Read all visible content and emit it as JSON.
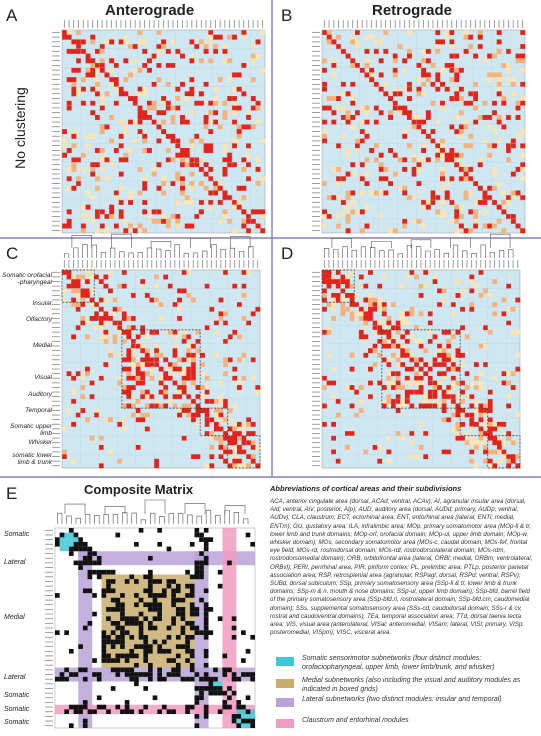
{
  "panels": [
    {
      "letter": "A",
      "title": "Anterograde"
    },
    {
      "letter": "B",
      "title": "Retrograde"
    },
    {
      "letter": "C"
    },
    {
      "letter": "D"
    },
    {
      "letter": "E",
      "title": "Composite Matrix"
    }
  ],
  "side_label": "No clustering",
  "group_labels": [
    "Somatic orofacial -pharyngeal",
    "Insular",
    "Olfactory",
    "Medial",
    "Visual",
    "Auditory",
    "Temporal",
    "Somatic upper limb",
    "Whisker",
    "somatic lower limb & trunk"
  ],
  "composite_labels": [
    "Somatic",
    "Lateral",
    "Medial",
    "Lateral",
    "Somatic",
    "Somatic",
    "Somatic"
  ],
  "abbreviations": {
    "heading": "Abbreviations of cortical areas and their subdivisions",
    "text": "ACA, anterior cingulate area (dorsal, ACAd; ventral, ACAv); AI, agranular insular area (dorsal, AId; ventral, AIv; posterior, AIp); AUD, auditory area (dorsal, AUDd; primary, AUDp; ventral, AUDv); CLA, claustrum; ECT, ectorhinal area; ENT, entorhinal area (lateral, ENTl; medial, ENTm); GU, gustatory area; ILA, infralimbic area; MOp, primary somatomotor area (MOp-ll & tr, lower limb and trunk domains; MOp-orf, orofacial domain; MOp-ul, upper limb domain; MOp-w, whisker domain); MOs, secondary somatomotor area (MOs-c, caudal domain; MOs-fef, frontal eye field; MOs-rd, rostrodorsal domain; MOs-rdl, rostrodorsolateral domain; MOs-rdm, rostrodorsomedial domain); ORB, orbitofrontal area (lateral, ORBl; medial, ORBm; ventrolateral, ORBvl); PERI, perirhinal area; PIR, piriform cortex; PL, prelimbic area; PTLp, posterior parietal association area; RSP, retrosplenial area (agranular, RSPagl; dorsal, RSPd; ventral, RSPv); SUBd, dorsal subiculum; SSp, primary somatosensory area (SSp-ll & tr, lower limb & trunk domains; SSp-m & n, mouth & nose domains; SSp-ul, upper limb domain); SSp-bfd, barrel field of the primary somatosensory area (SSp-bfd.rl, rostrolateral domain; SSp-bfd.cm, caudomedial domain); SSs, supplemental somatosensory area (SSs-cd, caudodorsal domain; SSs-r & cv, rostral and caudoventral domains); TEa, temporal association area; TTd, dorsal taenia tecta area; VIS, visual area (anterolateral, VISal; anteromedial, VISam; lateral, VISl; primary, VISp; posteromedial, VISpm); VISC, visceral area."
  },
  "legend": [
    {
      "color": "#3fc7d6",
      "text": "Somatic sensorimotor subnetworks (four distinct modules: orofaciopharyngeal, upper limb, lower limb/trunk, and whisker)"
    },
    {
      "color": "#c9ad6e",
      "text": "Medial subnetworks (also including the visual and auditory modules as indicated in boxed grids)"
    },
    {
      "color": "#b7a3d6",
      "text": "Lateral subnetworks (two distinct modules: insular and temporal)"
    },
    {
      "color": "#f29bc0",
      "text": "Claustrum and entorhinal modules"
    }
  ]
}
